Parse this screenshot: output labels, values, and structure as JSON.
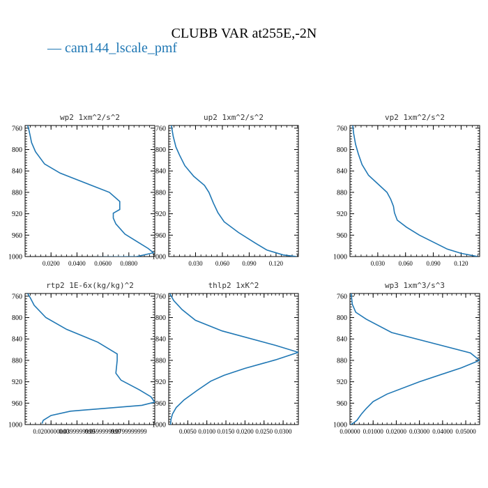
{
  "figure": {
    "title": "CLUBB VAR at255E,-2N",
    "legend_label": "cam144_lscale_pmf",
    "line_color": "#1f77b4"
  },
  "chart_data": [
    {
      "type": "line",
      "title": "wp2  1xm^2/s^2",
      "xlim": [
        0.0,
        0.1
      ],
      "ylim": [
        1000,
        755
      ],
      "yticks": [
        760,
        800,
        840,
        880,
        920,
        960,
        1000
      ],
      "xticks": [
        0.02,
        0.04,
        0.06,
        0.08
      ],
      "xtick_labels": [
        "0.0200",
        "0.0400",
        "0.0600",
        "0.0800"
      ],
      "series": [
        {
          "x": [
            0.002,
            0.003,
            0.004,
            0.005,
            0.008,
            0.015,
            0.027,
            0.065,
            0.073,
            0.073,
            0.068,
            0.068,
            0.07,
            0.077,
            0.087,
            0.095,
            0.099,
            0.086,
            0.05
          ],
          "y": [
            755,
            764,
            775,
            787,
            804,
            827,
            844,
            880,
            897,
            912,
            919,
            928,
            939,
            958,
            973,
            985,
            993,
            1000,
            1001
          ]
        }
      ]
    },
    {
      "type": "line",
      "title": "up2  1xm^2/s^2",
      "xlim": [
        0.0,
        0.145
      ],
      "ylim": [
        1000,
        755
      ],
      "yticks": [
        760,
        800,
        840,
        880,
        920,
        960,
        1000
      ],
      "xticks": [
        0.03,
        0.06,
        0.09,
        0.12
      ],
      "xtick_labels": [
        "0.030",
        "0.060",
        "0.090",
        "0.120"
      ],
      "series": [
        {
          "x": [
            0.003,
            0.005,
            0.008,
            0.012,
            0.018,
            0.028,
            0.04,
            0.045,
            0.05,
            0.055,
            0.062,
            0.078,
            0.097,
            0.11,
            0.128,
            0.143
          ],
          "y": [
            755,
            775,
            795,
            810,
            830,
            850,
            867,
            880,
            900,
            918,
            935,
            955,
            975,
            988,
            997,
            1000
          ]
        }
      ]
    },
    {
      "type": "line",
      "title": "vp2  1xm^2/s^2",
      "xlim": [
        0.0,
        0.14
      ],
      "ylim": [
        1000,
        755
      ],
      "yticks": [
        760,
        800,
        840,
        880,
        920,
        960,
        1000
      ],
      "xticks": [
        0.03,
        0.06,
        0.09,
        0.12
      ],
      "xtick_labels": [
        "0.030",
        "0.060",
        "0.090",
        "0.120"
      ],
      "series": [
        {
          "x": [
            0.003,
            0.004,
            0.006,
            0.009,
            0.013,
            0.02,
            0.03,
            0.04,
            0.044,
            0.047,
            0.048,
            0.051,
            0.061,
            0.075,
            0.09,
            0.105,
            0.12,
            0.138
          ],
          "y": [
            755,
            770,
            790,
            808,
            828,
            848,
            864,
            880,
            893,
            906,
            918,
            932,
            945,
            960,
            973,
            986,
            994,
            1000
          ]
        }
      ]
    },
    {
      "type": "line",
      "title": "rtp2  1E-6x(kg/kg)^2",
      "xlim": [
        0.0,
        0.1
      ],
      "ylim": [
        1000,
        755
      ],
      "yticks": [
        760,
        800,
        840,
        880,
        920,
        960,
        1000
      ],
      "xticks": [
        0.02,
        0.04,
        0.06,
        0.08
      ],
      "xtick_labels": [
        "0.0200000000",
        "0.0399999999",
        "0.0599999999",
        "0.0799999999"
      ],
      "series": [
        {
          "x": [
            0.002,
            0.004,
            0.007,
            0.016,
            0.032,
            0.056,
            0.071,
            0.071,
            0.07,
            0.074,
            0.088,
            0.097,
            0.1,
            0.09,
            0.035,
            0.02,
            0.014,
            0.013
          ],
          "y": [
            755,
            763,
            777,
            800,
            822,
            846,
            868,
            880,
            904,
            917,
            935,
            948,
            958,
            964,
            975,
            983,
            992,
            998
          ]
        }
      ]
    },
    {
      "type": "line",
      "title": "thlp2  1xK^2",
      "xlim": [
        0.0,
        0.034
      ],
      "ylim": [
        1000,
        755
      ],
      "yticks": [
        760,
        800,
        840,
        880,
        920,
        960,
        1000
      ],
      "xticks": [
        0.005,
        0.01,
        0.015,
        0.02,
        0.025,
        0.03
      ],
      "xtick_labels": [
        "0.0050",
        "0.0100",
        "0.0150",
        "0.0200",
        "0.0250",
        "0.0300"
      ],
      "series": [
        {
          "x": [
            0.0003,
            0.0013,
            0.0035,
            0.007,
            0.014,
            0.028,
            0.034,
            0.028,
            0.02,
            0.0145,
            0.011,
            0.0075,
            0.004,
            0.002,
            0.001,
            0.0006,
            0.0005
          ],
          "y": [
            755,
            768,
            785,
            805,
            825,
            852,
            865,
            879,
            895,
            908,
            919,
            936,
            954,
            968,
            980,
            990,
            1000
          ]
        }
      ]
    },
    {
      "type": "line",
      "title": "wp3  1xm^3/s^3",
      "xlim": [
        0.0,
        0.056
      ],
      "ylim": [
        1000,
        755
      ],
      "yticks": [
        760,
        800,
        840,
        880,
        920,
        960,
        1000
      ],
      "xticks": [
        0.0,
        0.01,
        0.02,
        0.03,
        0.04,
        0.05
      ],
      "xtick_labels": [
        "0.00000",
        "0.01000",
        "0.02000",
        "0.03000",
        "0.04000",
        "0.05000"
      ],
      "series": [
        {
          "x": [
            0.0005,
            0.001,
            0.0025,
            0.007,
            0.018,
            0.052,
            0.056,
            0.048,
            0.03,
            0.016,
            0.01,
            0.007,
            0.005,
            0.003,
            0.0012,
            0.0003
          ],
          "y": [
            755,
            775,
            790,
            803,
            828,
            866,
            880,
            894,
            920,
            943,
            957,
            970,
            980,
            992,
            998,
            1000
          ]
        }
      ]
    }
  ]
}
